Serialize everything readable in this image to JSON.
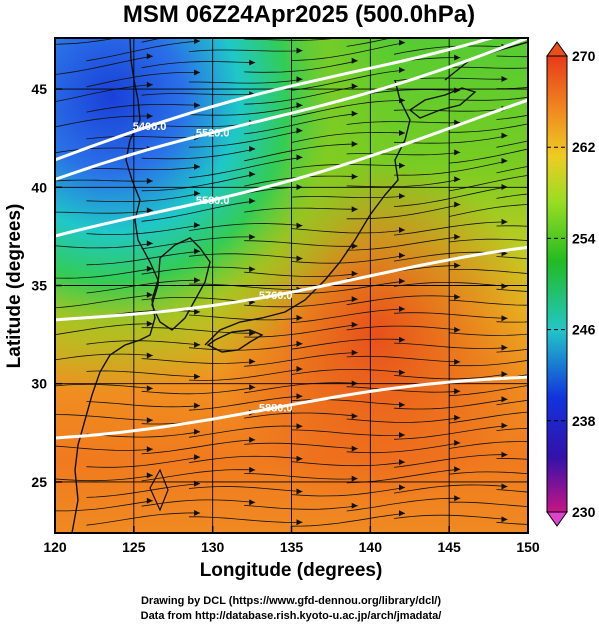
{
  "chart_data": {
    "type": "heatmap",
    "title": "MSM 06Z24Apr2025 (500.0hPa)",
    "xlabel": "Longitude (degrees)",
    "ylabel": "Latitude  (degrees)",
    "xlim": [
      120,
      150
    ],
    "ylim": [
      22.4,
      47.6
    ],
    "x_ticks": [
      "120",
      "125",
      "130",
      "135",
      "140",
      "145",
      "150"
    ],
    "y_ticks": [
      "25",
      "30",
      "35",
      "40",
      "45"
    ],
    "grid": true,
    "colorbar": {
      "min": 230,
      "max": 270,
      "ticks": [
        "270",
        "262",
        "254",
        "246",
        "238",
        "230"
      ],
      "placement": "right"
    },
    "contours": [
      {
        "label": "5400.0",
        "lat_at_120": 41.4,
        "lat_at_150": 48.5
      },
      {
        "label": "5520.0",
        "lat_at_120": 40.1,
        "lat_at_150": 47.7
      },
      {
        "label": "5580.0",
        "lat_at_120": 37.2,
        "lat_at_150": 44.2
      },
      {
        "label": "5760.0",
        "lat_at_120": 33.2,
        "lat_at_150": 36.6
      },
      {
        "label": "5880.0",
        "lat_at_120": 27.5,
        "lat_at_150": 30.2
      }
    ],
    "credits": [
      "Drawing by DCL (https://www.gfd-dennou.org/library/dcl/)",
      "Data from http://database.rish.kyoto-u.ac.jp/arch/jmadata/"
    ]
  }
}
